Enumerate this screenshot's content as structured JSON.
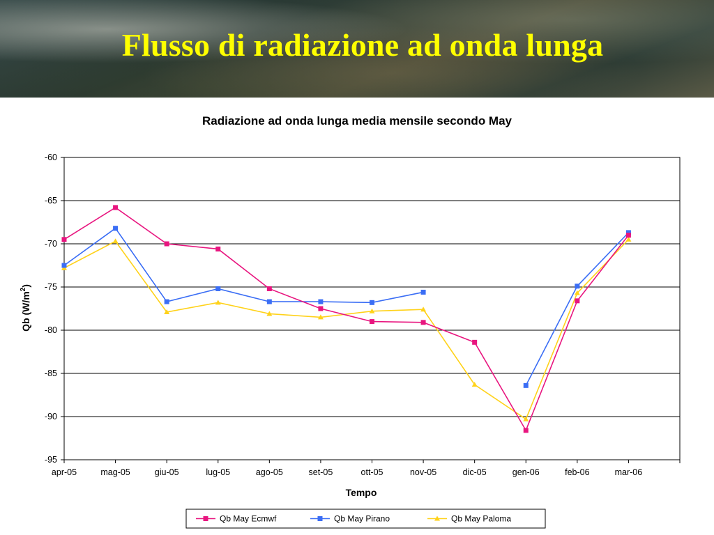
{
  "slide": {
    "title": "Flusso di radiazione ad onda lunga"
  },
  "chart_data": {
    "type": "line",
    "title": "Radiazione ad onda lunga media mensile secondo May",
    "xlabel": "Tempo",
    "ylabel": "Qb (W/m²)",
    "ylabel_main": "Qb (W/m",
    "ylabel_sup": "2",
    "ylabel_close": ")",
    "ylim": [
      -95,
      -60
    ],
    "yticks": [
      -60,
      -65,
      -70,
      -75,
      -80,
      -85,
      -90,
      -95
    ],
    "categories": [
      "apr-05",
      "mag-05",
      "giu-05",
      "lug-05",
      "ago-05",
      "set-05",
      "ott-05",
      "nov-05",
      "dic-05",
      "gen-06",
      "feb-06",
      "mar-06"
    ],
    "grid": "horizontal",
    "legend_position": "bottom",
    "series": [
      {
        "name": "Qb May Ecmwf",
        "color": "#e8157f",
        "marker": "square",
        "values": [
          -69.5,
          -65.8,
          -70.0,
          -70.6,
          -75.2,
          -77.5,
          -79.0,
          -79.1,
          -81.4,
          -91.6,
          -76.6,
          -69.0
        ]
      },
      {
        "name": "Qb May Pirano",
        "color": "#3b6ef5",
        "marker": "square",
        "values": [
          -72.5,
          -68.2,
          -76.7,
          -75.2,
          -76.7,
          -76.7,
          -76.8,
          -75.6,
          null,
          -86.4,
          -74.9,
          -68.7
        ]
      },
      {
        "name": "Qb May Paloma",
        "color": "#ffd21a",
        "marker": "triangle",
        "values": [
          -72.8,
          -69.7,
          -77.9,
          -76.8,
          -78.1,
          -78.5,
          -77.8,
          -77.6,
          -86.3,
          -90.3,
          -75.7,
          -69.5
        ]
      }
    ]
  }
}
